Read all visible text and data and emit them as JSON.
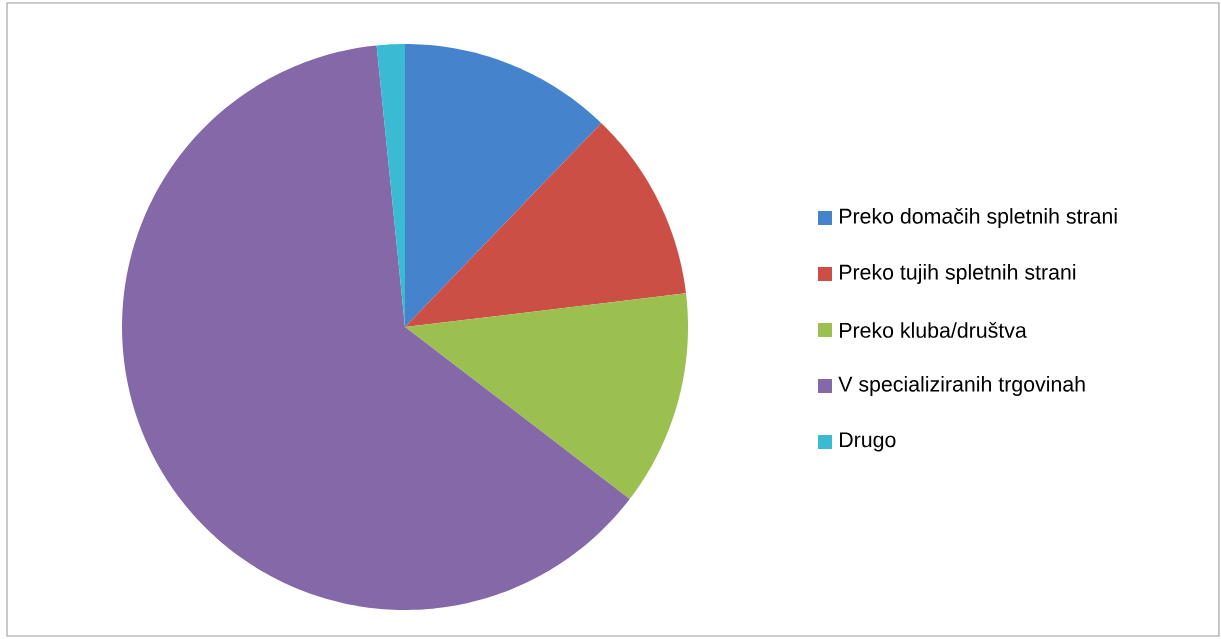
{
  "chart_data": {
    "type": "pie",
    "categories": [
      "Preko domačih spletnih strani",
      "Preko tujih spletnih strani",
      "Preko kluba/društva",
      "V specializiranih trgovinah",
      "Drugo"
    ],
    "values": [
      12.2,
      10.9,
      12.3,
      63.0,
      1.6
    ],
    "colors": [
      "#4683cd",
      "#cc4f45",
      "#9cc04f",
      "#8468a8",
      "#3bbad3"
    ],
    "legend": "right"
  }
}
